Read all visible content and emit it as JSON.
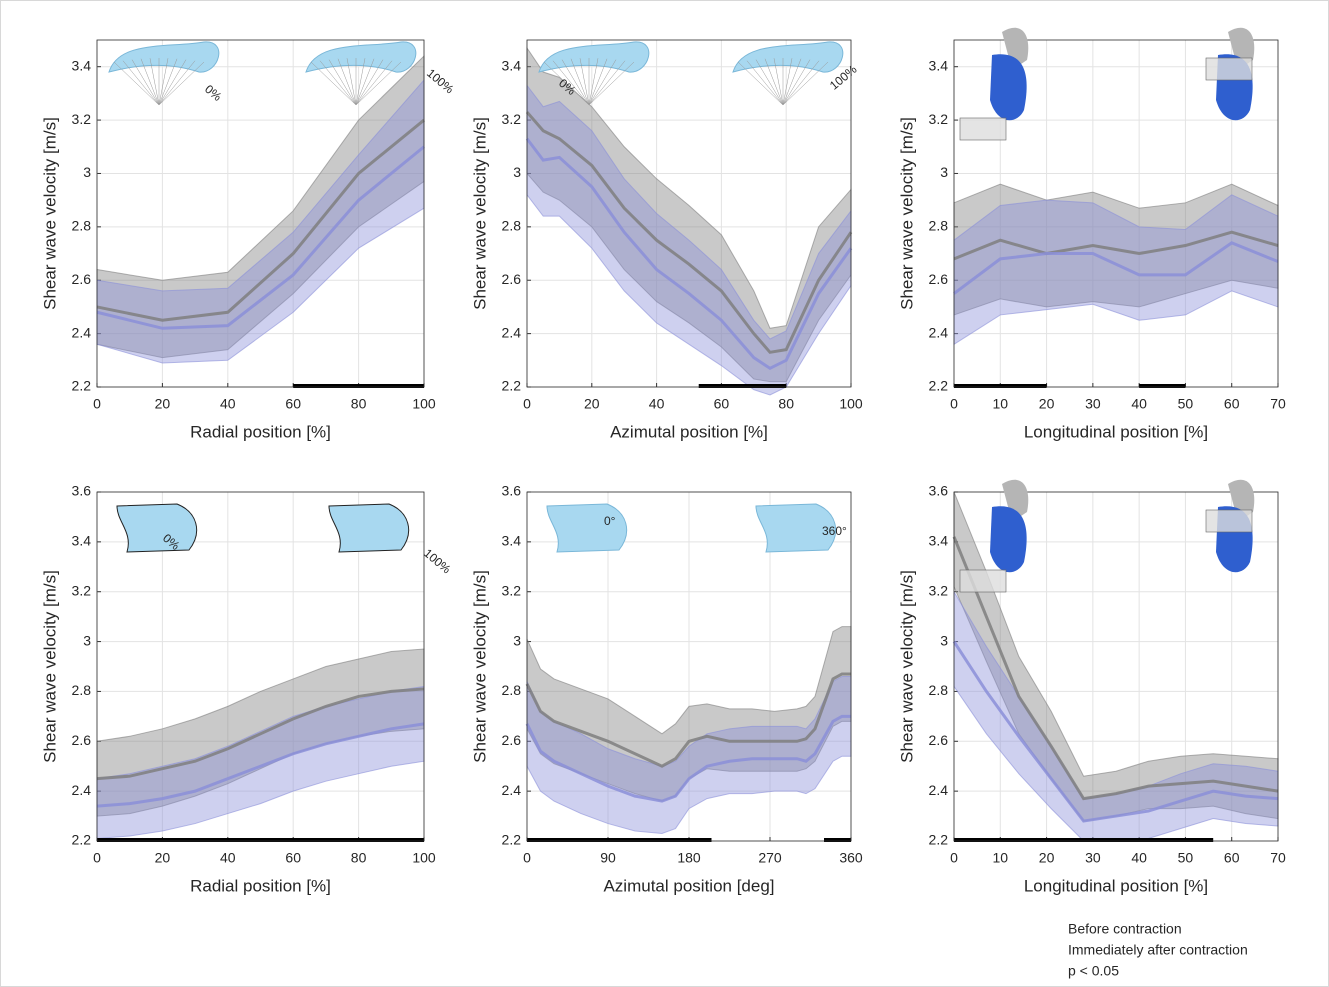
{
  "series": [
    {
      "name": "Before contraction",
      "color": "#8b8fd8"
    },
    {
      "name": "Immediately after contraction",
      "color": "#7f7f7f"
    }
  ],
  "significance_label": "p < 0.05",
  "chart_data": [
    {
      "type": "line",
      "xlabel": "Radial position [%]",
      "ylabel": "Shear wave velocity [m/s]",
      "x": [
        0,
        20,
        40,
        60,
        80,
        100
      ],
      "xlim": [
        0,
        100
      ],
      "xticks": [
        0,
        20,
        40,
        60,
        80,
        100
      ],
      "ylim": [
        2.2,
        3.5
      ],
      "yticks": [
        2.2,
        2.4,
        2.6,
        2.8,
        3,
        3.2,
        3.4
      ],
      "grid": true,
      "series": [
        {
          "values": [
            2.48,
            2.42,
            2.43,
            2.62,
            2.9,
            3.1
          ],
          "lower": [
            2.36,
            2.29,
            2.3,
            2.48,
            2.72,
            2.87
          ],
          "upper": [
            2.6,
            2.56,
            2.57,
            2.78,
            3.07,
            3.35
          ]
        },
        {
          "values": [
            2.5,
            2.45,
            2.48,
            2.7,
            3.0,
            3.2
          ],
          "lower": [
            2.36,
            2.31,
            2.34,
            2.55,
            2.8,
            2.97
          ],
          "upper": [
            2.64,
            2.6,
            2.63,
            2.86,
            3.2,
            3.44
          ]
        }
      ],
      "significance": [
        [
          60,
          100
        ]
      ],
      "annotations": [
        "0%",
        "100%"
      ]
    },
    {
      "type": "line",
      "xlabel": "Azimutal position [%]",
      "ylabel": "Shear wave velocity [m/s]",
      "x": [
        0,
        5,
        10,
        20,
        30,
        40,
        50,
        60,
        70,
        75,
        80,
        90,
        100
      ],
      "xlim": [
        0,
        100
      ],
      "xticks": [
        0,
        20,
        40,
        60,
        80,
        100
      ],
      "ylim": [
        2.2,
        3.5
      ],
      "yticks": [
        2.2,
        2.4,
        2.6,
        2.8,
        3,
        3.2,
        3.4
      ],
      "grid": true,
      "series": [
        {
          "values": [
            3.13,
            3.05,
            3.06,
            2.95,
            2.78,
            2.64,
            2.55,
            2.45,
            2.31,
            2.27,
            2.3,
            2.55,
            2.72
          ],
          "lower": [
            2.92,
            2.84,
            2.84,
            2.72,
            2.56,
            2.44,
            2.36,
            2.28,
            2.19,
            2.17,
            2.2,
            2.4,
            2.58
          ],
          "upper": [
            3.33,
            3.25,
            3.27,
            3.16,
            2.98,
            2.85,
            2.75,
            2.64,
            2.45,
            2.38,
            2.41,
            2.7,
            2.86
          ]
        },
        {
          "values": [
            3.23,
            3.16,
            3.13,
            3.03,
            2.87,
            2.75,
            2.66,
            2.56,
            2.4,
            2.33,
            2.34,
            2.6,
            2.78
          ],
          "lower": [
            3.0,
            2.93,
            2.9,
            2.8,
            2.64,
            2.52,
            2.44,
            2.35,
            2.23,
            2.22,
            2.22,
            2.45,
            2.62
          ],
          "upper": [
            3.47,
            3.38,
            3.36,
            3.25,
            3.1,
            2.98,
            2.88,
            2.77,
            2.56,
            2.42,
            2.43,
            2.8,
            2.94
          ]
        }
      ],
      "significance": [
        [
          53,
          80
        ]
      ],
      "annotations": [
        "0%",
        "100%"
      ]
    },
    {
      "type": "line",
      "xlabel": "Longitudinal position [%]",
      "ylabel": "Shear wave velocity [m/s]",
      "x": [
        0,
        10,
        20,
        30,
        40,
        50,
        60,
        70
      ],
      "xlim": [
        0,
        70
      ],
      "xticks": [
        0,
        10,
        20,
        30,
        40,
        50,
        60,
        70
      ],
      "ylim": [
        2.2,
        3.5
      ],
      "yticks": [
        2.2,
        2.4,
        2.6,
        2.8,
        3,
        3.2,
        3.4
      ],
      "grid": true,
      "series": [
        {
          "values": [
            2.55,
            2.68,
            2.7,
            2.7,
            2.62,
            2.62,
            2.74,
            2.67
          ],
          "lower": [
            2.36,
            2.47,
            2.49,
            2.51,
            2.45,
            2.47,
            2.56,
            2.5
          ],
          "upper": [
            2.75,
            2.88,
            2.9,
            2.89,
            2.8,
            2.79,
            2.92,
            2.84
          ]
        },
        {
          "values": [
            2.68,
            2.75,
            2.7,
            2.73,
            2.7,
            2.73,
            2.78,
            2.73
          ],
          "lower": [
            2.47,
            2.53,
            2.5,
            2.52,
            2.5,
            2.55,
            2.6,
            2.57
          ],
          "upper": [
            2.89,
            2.96,
            2.9,
            2.93,
            2.87,
            2.89,
            2.96,
            2.88
          ]
        }
      ],
      "significance": [
        [
          0,
          20
        ],
        [
          40,
          50
        ]
      ],
      "annotations": []
    },
    {
      "type": "line",
      "xlabel": "Radial position [%]",
      "ylabel": "Shear wave velocity [m/s]",
      "x": [
        0,
        10,
        20,
        30,
        40,
        50,
        60,
        70,
        80,
        90,
        100
      ],
      "xlim": [
        0,
        100
      ],
      "xticks": [
        0,
        20,
        40,
        60,
        80,
        100
      ],
      "ylim": [
        2.2,
        3.6
      ],
      "yticks": [
        2.2,
        2.4,
        2.6,
        2.8,
        3,
        3.2,
        3.4,
        3.6
      ],
      "grid": true,
      "series": [
        {
          "values": [
            2.34,
            2.35,
            2.37,
            2.4,
            2.45,
            2.5,
            2.55,
            2.59,
            2.62,
            2.65,
            2.67
          ],
          "lower": [
            2.21,
            2.22,
            2.24,
            2.27,
            2.31,
            2.35,
            2.4,
            2.44,
            2.47,
            2.5,
            2.52
          ],
          "upper": [
            2.45,
            2.47,
            2.5,
            2.53,
            2.58,
            2.64,
            2.7,
            2.74,
            2.77,
            2.8,
            2.82
          ]
        },
        {
          "values": [
            2.45,
            2.46,
            2.49,
            2.52,
            2.57,
            2.63,
            2.69,
            2.74,
            2.78,
            2.8,
            2.81
          ],
          "lower": [
            2.3,
            2.31,
            2.34,
            2.38,
            2.43,
            2.49,
            2.55,
            2.59,
            2.62,
            2.64,
            2.65
          ],
          "upper": [
            2.6,
            2.62,
            2.65,
            2.69,
            2.74,
            2.8,
            2.85,
            2.9,
            2.93,
            2.96,
            2.97
          ]
        }
      ],
      "significance": [
        [
          0,
          100
        ]
      ],
      "annotations": [
        "0%",
        "100%"
      ]
    },
    {
      "type": "line",
      "xlabel": "Azimutal position [deg]",
      "ylabel": "Shear wave velocity [m/s]",
      "x": [
        0,
        15,
        30,
        60,
        90,
        120,
        150,
        165,
        180,
        200,
        225,
        250,
        275,
        300,
        310,
        320,
        340,
        350,
        360
      ],
      "xlim": [
        0,
        360
      ],
      "xticks": [
        0,
        90,
        180,
        270,
        360
      ],
      "ylim": [
        2.2,
        3.6
      ],
      "yticks": [
        2.2,
        2.4,
        2.6,
        2.8,
        3,
        3.2,
        3.4,
        3.6
      ],
      "grid": true,
      "series": [
        {
          "values": [
            2.67,
            2.56,
            2.52,
            2.47,
            2.42,
            2.38,
            2.36,
            2.38,
            2.45,
            2.5,
            2.52,
            2.53,
            2.53,
            2.53,
            2.52,
            2.55,
            2.68,
            2.7,
            2.7
          ],
          "lower": [
            2.5,
            2.4,
            2.36,
            2.31,
            2.27,
            2.24,
            2.23,
            2.25,
            2.33,
            2.37,
            2.39,
            2.39,
            2.4,
            2.4,
            2.39,
            2.41,
            2.52,
            2.54,
            2.54
          ],
          "upper": [
            2.84,
            2.72,
            2.68,
            2.63,
            2.57,
            2.53,
            2.5,
            2.52,
            2.58,
            2.63,
            2.65,
            2.66,
            2.66,
            2.66,
            2.65,
            2.69,
            2.84,
            2.86,
            2.86
          ]
        },
        {
          "values": [
            2.83,
            2.72,
            2.68,
            2.64,
            2.6,
            2.55,
            2.5,
            2.53,
            2.6,
            2.62,
            2.6,
            2.6,
            2.6,
            2.6,
            2.61,
            2.65,
            2.85,
            2.87,
            2.87
          ],
          "lower": [
            2.65,
            2.55,
            2.51,
            2.47,
            2.43,
            2.39,
            2.36,
            2.38,
            2.45,
            2.49,
            2.48,
            2.48,
            2.48,
            2.48,
            2.49,
            2.52,
            2.66,
            2.68,
            2.68
          ],
          "upper": [
            3.01,
            2.89,
            2.85,
            2.81,
            2.77,
            2.7,
            2.63,
            2.67,
            2.74,
            2.75,
            2.73,
            2.73,
            2.72,
            2.73,
            2.74,
            2.78,
            3.04,
            3.06,
            3.06
          ]
        }
      ],
      "significance": [
        [
          0,
          205
        ],
        [
          330,
          360
        ]
      ],
      "annotations": [
        "0°",
        "360°"
      ]
    },
    {
      "type": "line",
      "xlabel": "Longitudinal position [%]",
      "ylabel": "Shear wave velocity [m/s]",
      "x": [
        0,
        7,
        14,
        21,
        28,
        35,
        42,
        49,
        56,
        63,
        70
      ],
      "xlim": [
        0,
        70
      ],
      "xticks": [
        0,
        10,
        20,
        30,
        40,
        50,
        60,
        70
      ],
      "ylim": [
        2.2,
        3.6
      ],
      "yticks": [
        2.2,
        2.4,
        2.6,
        2.8,
        3,
        3.2,
        3.4,
        3.6
      ],
      "grid": true,
      "series": [
        {
          "values": [
            3.0,
            2.8,
            2.62,
            2.45,
            2.28,
            2.3,
            2.32,
            2.36,
            2.4,
            2.38,
            2.37
          ],
          "lower": [
            2.82,
            2.63,
            2.47,
            2.33,
            2.2,
            2.2,
            2.21,
            2.25,
            2.29,
            2.27,
            2.26
          ],
          "upper": [
            3.2,
            2.98,
            2.78,
            2.58,
            2.37,
            2.39,
            2.42,
            2.47,
            2.51,
            2.5,
            2.48
          ]
        },
        {
          "values": [
            3.42,
            3.1,
            2.78,
            2.58,
            2.37,
            2.39,
            2.42,
            2.43,
            2.44,
            2.42,
            2.4
          ],
          "lower": [
            3.22,
            2.92,
            2.63,
            2.45,
            2.28,
            2.3,
            2.33,
            2.33,
            2.34,
            2.31,
            2.29
          ],
          "upper": [
            3.6,
            3.28,
            2.94,
            2.72,
            2.46,
            2.48,
            2.52,
            2.54,
            2.55,
            2.54,
            2.53
          ]
        }
      ],
      "significance": [
        [
          0,
          56
        ]
      ],
      "annotations": []
    }
  ]
}
